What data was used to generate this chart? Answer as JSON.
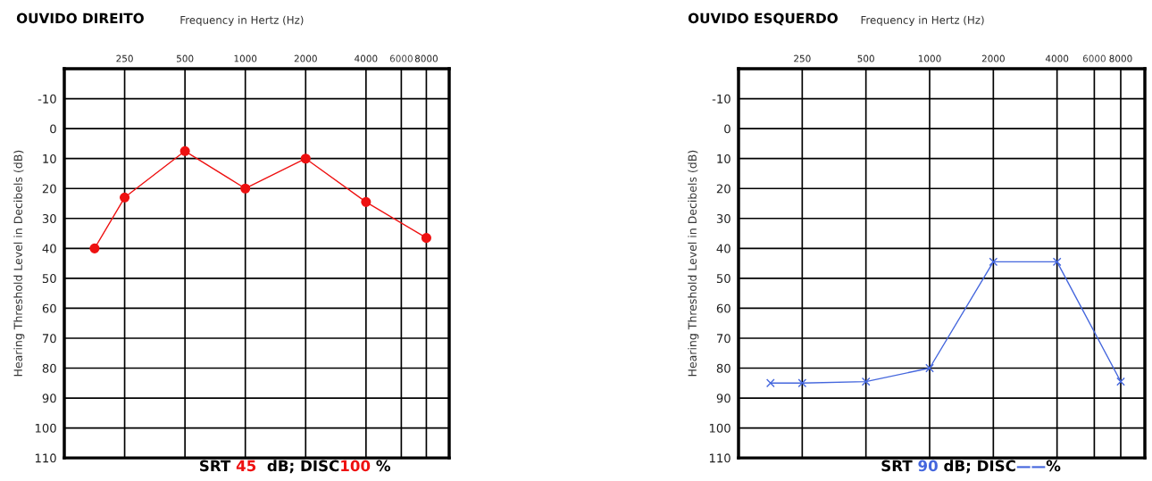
{
  "chart_data": [
    {
      "type": "line",
      "title": "OUVIDO DIREITO",
      "xlabel": "Frequency in Hertz (Hz)",
      "ylabel": "Hearing Threshold Level in Decibels (dB)",
      "x": [
        177,
        250,
        500,
        1000,
        2000,
        4000,
        8000
      ],
      "series": [
        {
          "color": "#ee1111",
          "values": [
            40,
            23,
            7.5,
            20,
            10,
            24.5,
            36.5
          ]
        }
      ],
      "marker": "circle",
      "log": "x",
      "grid": true,
      "xlim": [
        125,
        10400
      ],
      "xticks": [
        250,
        500,
        1000,
        2000,
        4000,
        {
          "value": 6000,
          "label": "6000"
        },
        8000
      ],
      "ylim": [
        110,
        -20
      ],
      "yticks": [
        -10,
        0,
        10,
        20,
        30,
        40,
        50,
        60,
        70,
        80,
        90,
        100,
        110
      ],
      "annotations": [
        "SRT ",
        "45",
        "  dB; DISC",
        "100",
        " %"
      ]
    },
    {
      "type": "line",
      "title": "OUVIDO ESQUERDO",
      "xlabel": "Frequency in Hertz (Hz)",
      "ylabel": "Hearing Threshold Level in Decibels (dB)",
      "x": [
        177,
        250,
        500,
        1000,
        2000,
        4000,
        8000
      ],
      "series": [
        {
          "color": "#4466dd",
          "values": [
            85,
            85,
            84.5,
            80,
            44.5,
            44.5,
            84.5
          ]
        }
      ],
      "marker": "cross",
      "log": "x",
      "grid": true,
      "xlim": [
        125,
        10400
      ],
      "xticks": [
        250,
        500,
        1000,
        2000,
        4000,
        {
          "value": 6000,
          "label": "6000"
        },
        8000
      ],
      "ylim": [
        110,
        -20
      ],
      "yticks": [
        -10,
        0,
        10,
        20,
        30,
        40,
        50,
        60,
        70,
        80,
        90,
        100,
        110
      ],
      "annotations": [
        "SRT ",
        "90",
        " dB; DISC",
        "——",
        "%"
      ]
    }
  ]
}
